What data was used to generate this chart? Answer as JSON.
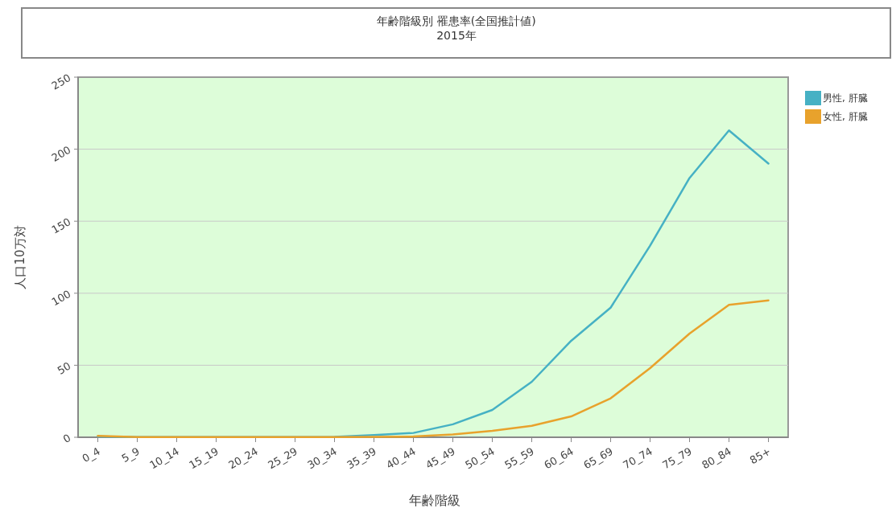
{
  "chart_data": {
    "type": "line",
    "title": "年齢階級別 罹患率(全国推計値)",
    "subtitle": "2015年",
    "xlabel": "年齢階級",
    "ylabel": "人口10万対",
    "categories": [
      "0_4",
      "5_9",
      "10_14",
      "15_19",
      "20_24",
      "25_29",
      "30_34",
      "35_39",
      "40_44",
      "45_49",
      "50_54",
      "55_59",
      "60_64",
      "65_69",
      "70_74",
      "75_79",
      "80_84",
      "85+"
    ],
    "series": [
      {
        "name": "男性, 肝臓",
        "color": "#46b1c4",
        "values": [
          0.5,
          0.1,
          0.1,
          0.1,
          0.1,
          0.2,
          0.3,
          1.5,
          3,
          9,
          19,
          38.5,
          67,
          90,
          133,
          180,
          213,
          190
        ]
      },
      {
        "name": "女性, 肝臓",
        "color": "#e8a22c",
        "values": [
          1,
          0.1,
          0.1,
          0.1,
          0.1,
          0.1,
          0.2,
          0.3,
          0.5,
          2,
          4.5,
          8,
          14.5,
          27,
          48,
          72,
          92,
          95
        ]
      }
    ],
    "ylim": [
      0,
      250
    ],
    "yticks": [
      0,
      50,
      100,
      150,
      200,
      250
    ],
    "grid": "y",
    "legend": "top right",
    "marker": "none",
    "line_style": "solid"
  }
}
